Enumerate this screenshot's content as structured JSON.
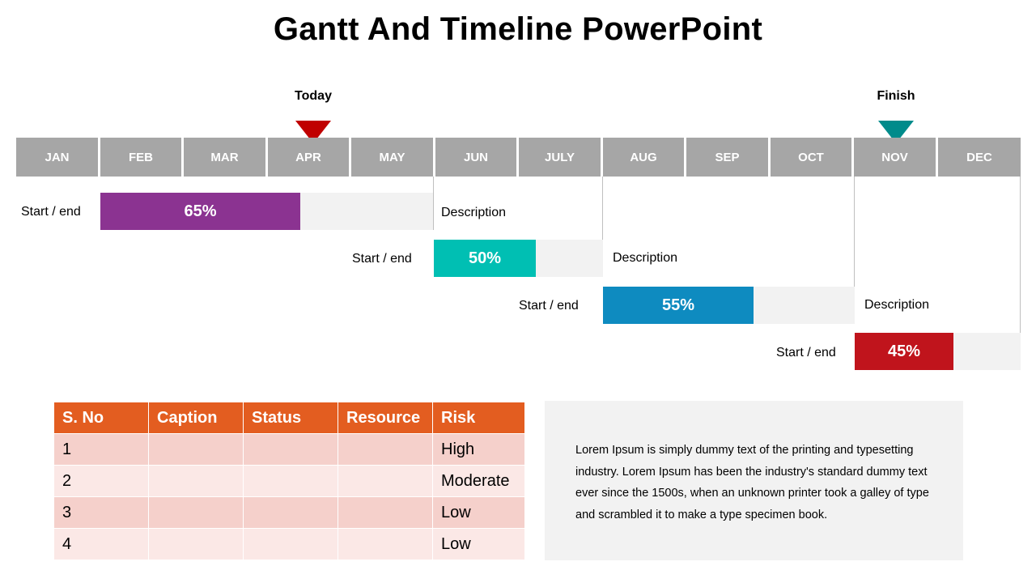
{
  "title": "Gantt And Timeline PowerPoint",
  "markers": {
    "today": {
      "label": "Today",
      "color": "#c00000"
    },
    "finish": {
      "label": "Finish",
      "color": "#008b8b"
    }
  },
  "months": [
    "JAN",
    "FEB",
    "MAR",
    "APR",
    "MAY",
    "JUN",
    "JULY",
    "AUG",
    "SEP",
    "OCT",
    "NOV",
    "DEC"
  ],
  "tasks": [
    {
      "label": "Start / end",
      "percent": "65%",
      "progress": 0.65,
      "color": "#8b3391",
      "description": "Description"
    },
    {
      "label": "Start / end",
      "percent": "50%",
      "progress": 0.5,
      "color": "#00bfb3",
      "description": "Description"
    },
    {
      "label": "Start / end",
      "percent": "55%",
      "progress": 0.55,
      "color": "#0e8bc0",
      "description": "Description"
    },
    {
      "label": "Start / end",
      "percent": "45%",
      "progress": 0.45,
      "color": "#c0141c",
      "description": ""
    }
  ],
  "table": {
    "header_color": "#e35d20",
    "headers": [
      "S. No",
      "Caption",
      "Status",
      "Resource",
      "Risk"
    ],
    "rows": [
      [
        "1",
        "",
        "",
        "",
        "High"
      ],
      [
        "2",
        "",
        "",
        "",
        "Moderate"
      ],
      [
        "3",
        "",
        "",
        "",
        "Low"
      ],
      [
        "4",
        "",
        "",
        "",
        "Low"
      ]
    ]
  },
  "lorem": "Lorem Ipsum is simply dummy text of the printing and typesetting industry. Lorem Ipsum has been the industry's standard dummy text ever since the 1500s, when an unknown printer took a galley of type and scrambled it to make a type specimen book."
}
